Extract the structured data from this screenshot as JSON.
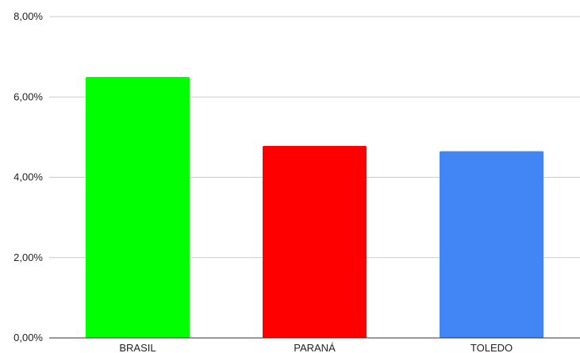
{
  "chart_data": {
    "type": "bar",
    "categories": [
      "BRASIL",
      "PARANÁ",
      "TOLEDO"
    ],
    "values": [
      6.5,
      4.78,
      4.65
    ],
    "colors": [
      "#00ff00",
      "#ff0000",
      "#4285f4"
    ],
    "ylim": [
      0,
      8
    ],
    "yticks": [
      0,
      2,
      4,
      6,
      8
    ],
    "ytick_labels": [
      "0,00%",
      "2,00%",
      "4,00%",
      "6,00%",
      "8,00%"
    ],
    "grid": true,
    "legend": "none"
  }
}
